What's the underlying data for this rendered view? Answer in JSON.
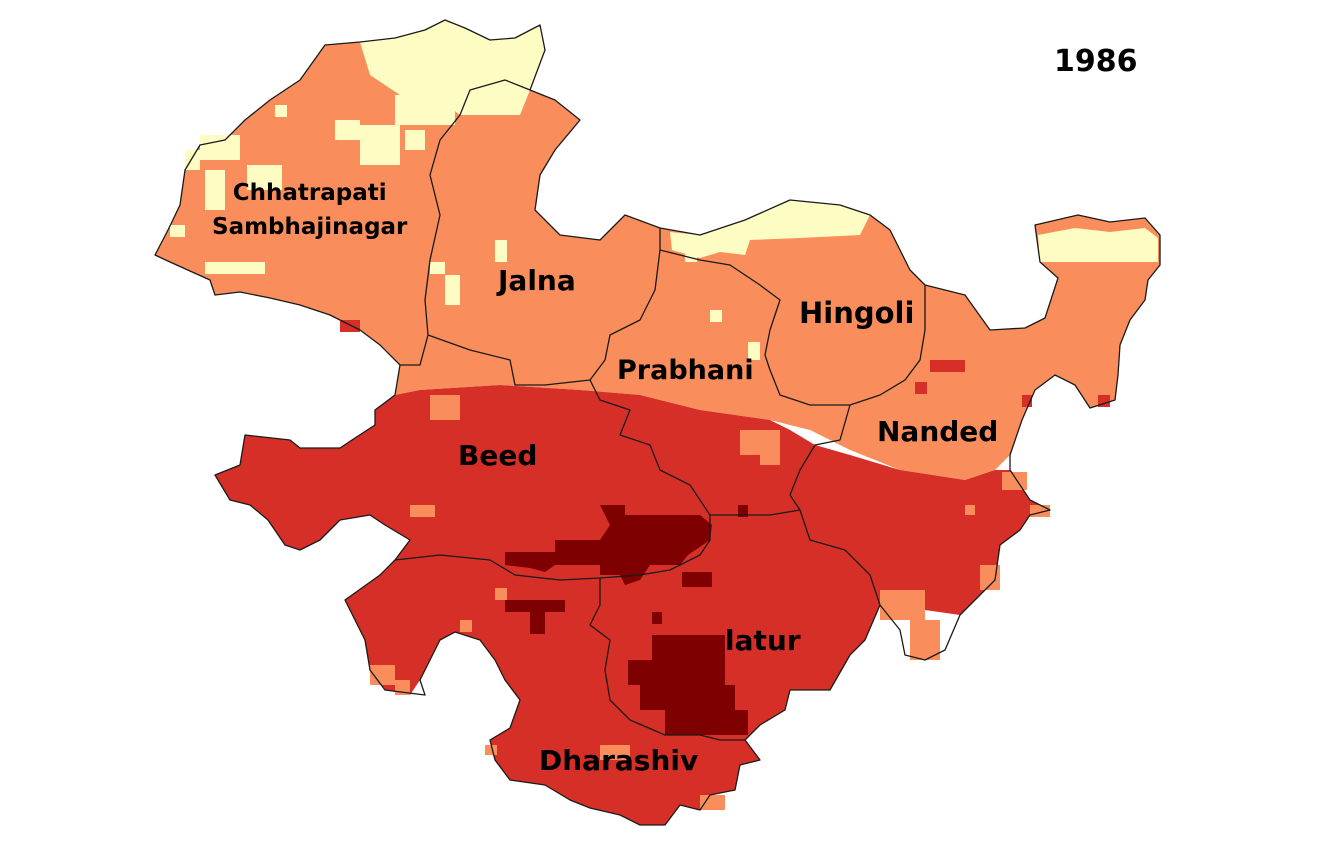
{
  "year": "1986",
  "colors": {
    "class_light": "#fdfdc3",
    "class_orange": "#f98e5c",
    "class_red": "#d62f27",
    "class_dark": "#7f0000",
    "boundary": "#1a1a1a",
    "background": "#ffffff"
  },
  "districts": [
    {
      "id": "chhatrapati-sambhajinagar",
      "line1": "Chhatrapati",
      "line2": "Sambhajinagar"
    },
    {
      "id": "jalna",
      "line1": "Jalna"
    },
    {
      "id": "hingoli",
      "line1": "Hingoli"
    },
    {
      "id": "prabhani",
      "line1": "Prabhani"
    },
    {
      "id": "nanded",
      "line1": "Nanded"
    },
    {
      "id": "beed",
      "line1": "Beed"
    },
    {
      "id": "latur",
      "line1": "latur"
    },
    {
      "id": "dharashiv",
      "line1": "Dharashiv"
    }
  ]
}
